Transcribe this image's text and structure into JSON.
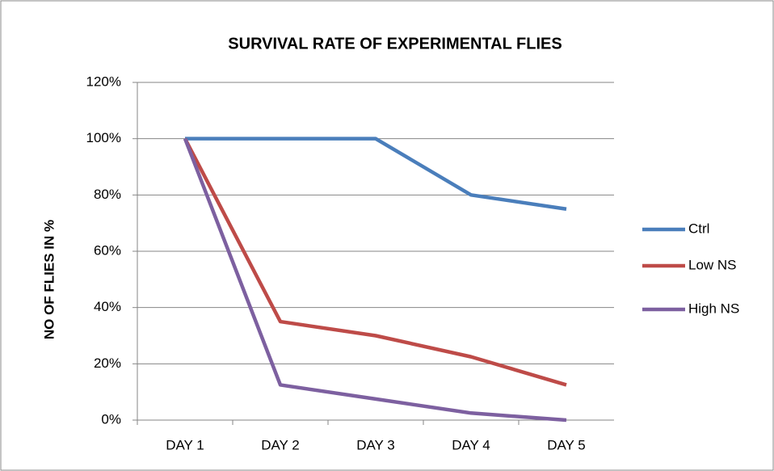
{
  "chart_data": {
    "type": "line",
    "title": "SURVIVAL RATE OF EXPERIMENTAL FLIES",
    "y_label": "NO  OF  FLIES  IN %",
    "categories": [
      "DAY 1",
      "DAY 2",
      "DAY 3",
      "DAY 4",
      "DAY 5"
    ],
    "series": [
      {
        "name": "Ctrl",
        "color": "#4a7ebb",
        "values": [
          100,
          100,
          100,
          80,
          75
        ]
      },
      {
        "name": "Low NS",
        "color": "#be4b48",
        "values": [
          100,
          35,
          30,
          22.5,
          12.5
        ]
      },
      {
        "name": "High NS",
        "color": "#7d60a0",
        "values": [
          100,
          12.5,
          7.5,
          2.5,
          0
        ]
      }
    ],
    "ylim": [
      0,
      120
    ],
    "yticks": [
      {
        "value": 0,
        "label": "0%"
      },
      {
        "value": 20,
        "label": "20%"
      },
      {
        "value": 40,
        "label": "40%"
      },
      {
        "value": 60,
        "label": "60%"
      },
      {
        "value": 80,
        "label": "80%"
      },
      {
        "value": 100,
        "label": "100%"
      },
      {
        "value": 120,
        "label": "120%"
      }
    ],
    "grid": true,
    "legend": "right"
  }
}
